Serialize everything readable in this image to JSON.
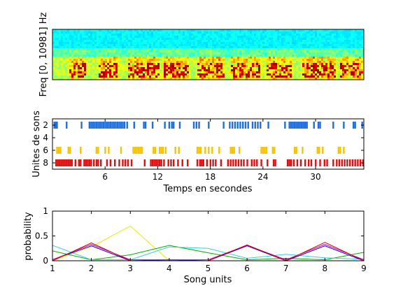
{
  "chart_data": [
    {
      "type": "heatmap",
      "title": "",
      "xlabel": "",
      "ylabel": "Freq [0, 10981] Hz",
      "grid": false,
      "colormap": "jet",
      "xlim": [
        0,
        35.5
      ],
      "ylim": [
        0,
        10981
      ],
      "notes_bands": [
        {
          "start": 2.2,
          "end": 3.6
        },
        {
          "start": 5.6,
          "end": 7.2
        },
        {
          "start": 8.8,
          "end": 11.8
        },
        {
          "start": 12.8,
          "end": 15.2
        },
        {
          "start": 16.8,
          "end": 19.2
        },
        {
          "start": 20.5,
          "end": 23.4
        },
        {
          "start": 24.6,
          "end": 27.0
        },
        {
          "start": 28.5,
          "end": 32.0
        },
        {
          "start": 33.0,
          "end": 35.0
        }
      ]
    },
    {
      "type": "scatter",
      "title": "",
      "xlabel": "Temps en secondes",
      "ylabel": "Unites de sons",
      "xlim": [
        0,
        35.5
      ],
      "ylim": [
        9,
        1
      ],
      "xticks": [
        "6",
        "12",
        "18",
        "24",
        "30"
      ],
      "xtick_values": [
        6,
        12,
        18,
        24,
        30
      ],
      "yticks": [
        "2",
        "4",
        "6",
        "8"
      ],
      "ytick_values": [
        2,
        4,
        6,
        8
      ],
      "series": [
        {
          "unit": 2,
          "color": "#1f6fe0",
          "x": [
            0.2,
            0.35,
            0.5,
            1.6,
            3.3,
            4.2,
            4.4,
            4.6,
            4.8,
            5.0,
            5.2,
            5.4,
            5.6,
            5.8,
            6.0,
            6.2,
            6.4,
            6.6,
            6.8,
            7.0,
            7.2,
            7.4,
            7.6,
            7.8,
            8.0,
            8.2,
            8.5,
            9.3,
            10.4,
            10.6,
            11.4,
            12.8,
            13.3,
            13.6,
            13.8,
            14.5,
            16.1,
            16.4,
            16.7,
            17.8,
            19.5,
            20.2,
            20.5,
            20.8,
            21.1,
            21.4,
            21.7,
            22.0,
            22.3,
            22.8,
            23.1,
            23.4,
            23.7,
            24.6,
            26.5,
            27.0,
            27.2,
            27.4,
            27.6,
            27.8,
            28.0,
            28.2,
            28.4,
            28.6,
            28.8,
            29.0,
            29.8,
            30.3,
            30.5,
            32.0,
            33.2,
            34.3,
            34.5,
            35.3
          ]
        },
        {
          "unit": 6,
          "color": "#f5c400",
          "x": [
            0.5,
            0.7,
            0.9,
            1.8,
            2.0,
            3.2,
            5.0,
            5.2,
            6.0,
            6.4,
            7.8,
            9.2,
            9.4,
            9.6,
            9.8,
            10.0,
            10.2,
            11.5,
            11.7,
            12.2,
            12.4,
            12.6,
            12.9,
            14.0,
            14.4,
            16.5,
            16.7,
            16.9,
            17.4,
            17.8,
            18.2,
            19.0,
            20.3,
            20.5,
            20.7,
            21.3,
            23.8,
            24.0,
            24.2,
            24.4,
            25.1,
            25.3,
            27.6,
            27.8,
            28.5,
            30.2,
            30.4,
            30.8,
            32.6,
            32.8,
            33.2
          ]
        },
        {
          "unit": 8,
          "color": "#e01010",
          "x": [
            0.4,
            0.6,
            0.8,
            1.0,
            1.2,
            1.4,
            1.6,
            1.8,
            2.0,
            2.2,
            2.6,
            3.0,
            3.2,
            3.6,
            3.8,
            4.0,
            4.2,
            4.4,
            4.7,
            5.0,
            5.2,
            5.5,
            6.2,
            6.6,
            7.1,
            7.6,
            8.0,
            8.3,
            8.6,
            9.0,
            10.5,
            11.2,
            11.4,
            11.6,
            11.8,
            12.0,
            12.2,
            12.4,
            12.7,
            13.2,
            13.5,
            13.8,
            14.3,
            14.8,
            15.4,
            16.5,
            16.8,
            17.0,
            17.2,
            17.6,
            18.0,
            18.3,
            18.6,
            19.2,
            20.0,
            20.3,
            20.6,
            20.9,
            21.2,
            21.5,
            21.8,
            22.2,
            22.7,
            23.0,
            23.3,
            23.8,
            24.5,
            25.2,
            25.4,
            26.8,
            27.0,
            27.2,
            27.5,
            27.9,
            28.3,
            28.8,
            29.2,
            29.5,
            30.0,
            30.5,
            31.0,
            31.3,
            32.0,
            32.4,
            32.7,
            33.0,
            33.3,
            33.6,
            33.9,
            34.2,
            34.5,
            34.8,
            35.1,
            35.4
          ]
        }
      ]
    },
    {
      "type": "line",
      "title": "",
      "xlabel": "Song units",
      "ylabel": "probability",
      "xlim": [
        1,
        9
      ],
      "ylim": [
        0,
        1
      ],
      "categories": [
        "1",
        "2",
        "3",
        "4",
        "5",
        "6",
        "7",
        "8",
        "9"
      ],
      "x": [
        1,
        2,
        3,
        4,
        5,
        6,
        7,
        8,
        9
      ],
      "yticks": [
        "0",
        "0.5",
        "1"
      ],
      "ytick_values": [
        0,
        0.5,
        1
      ],
      "series": [
        {
          "color": "#e8e800",
          "values": [
            0.0,
            0.28,
            0.7,
            0.0,
            0.0,
            0.0,
            0.0,
            0.0,
            0.0
          ]
        },
        {
          "color": "#00b000",
          "values": [
            0.2,
            0.02,
            0.12,
            0.31,
            0.16,
            0.02,
            0.05,
            0.02,
            0.17
          ]
        },
        {
          "color": "#30d0e0",
          "values": [
            0.31,
            0.02,
            0.02,
            0.28,
            0.25,
            0.05,
            0.13,
            0.06,
            0.03
          ]
        },
        {
          "color": "#0000e0",
          "values": [
            0.02,
            0.3,
            0.0,
            0.02,
            0.0,
            0.3,
            0.0,
            0.3,
            0.0
          ]
        },
        {
          "color": "#c000c0",
          "values": [
            0.02,
            0.33,
            0.02,
            0.02,
            0.02,
            0.31,
            0.02,
            0.33,
            0.02
          ]
        },
        {
          "color": "#e00000",
          "values": [
            0.0,
            0.36,
            0.0,
            0.0,
            0.0,
            0.32,
            0.0,
            0.37,
            0.0
          ]
        }
      ]
    }
  ]
}
